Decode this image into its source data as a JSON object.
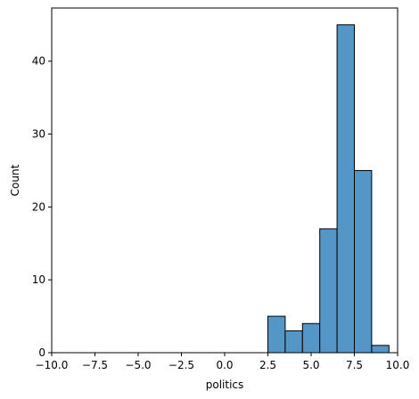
{
  "chart_data": {
    "type": "bar",
    "xlabel": "politics",
    "ylabel": "Count",
    "xlim": [
      -10,
      10
    ],
    "ylim": [
      0,
      47.3
    ],
    "x_ticks": [
      -10,
      -7.5,
      -5,
      -2.5,
      0,
      2.5,
      5,
      7.5,
      10
    ],
    "x_tick_labels": [
      "−10.0",
      "−7.5",
      "−5.0",
      "−2.5",
      "0.0",
      "2.5",
      "5.0",
      "7.5",
      "10.0"
    ],
    "y_ticks": [
      0,
      10,
      20,
      30,
      40
    ],
    "y_tick_labels": [
      "0",
      "10",
      "20",
      "30",
      "40"
    ],
    "bins": [
      {
        "x0": 2.5,
        "x1": 3.5,
        "value": 5
      },
      {
        "x0": 3.5,
        "x1": 4.5,
        "value": 3
      },
      {
        "x0": 4.5,
        "x1": 5.5,
        "value": 4
      },
      {
        "x0": 5.5,
        "x1": 6.5,
        "value": 17
      },
      {
        "x0": 6.5,
        "x1": 7.5,
        "value": 45
      },
      {
        "x0": 7.5,
        "x1": 8.5,
        "value": 25
      },
      {
        "x0": 8.5,
        "x1": 9.5,
        "value": 1
      }
    ],
    "bar_color": "#5497c7",
    "bar_edge_color": "#000000",
    "grid": false
  }
}
